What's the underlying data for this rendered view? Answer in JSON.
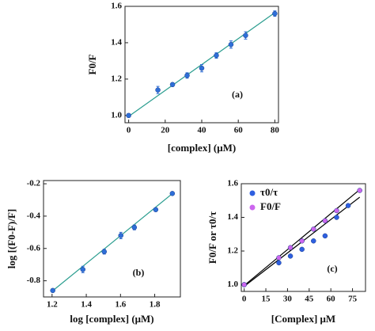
{
  "chart_data": [
    {
      "type": "scatter",
      "xlabel": "[complex] (μM)",
      "ylabel": "F0/F",
      "annotation": "(a)",
      "color": "#2e6fd8",
      "fit_color": "#2a9d8f",
      "series": [
        {
          "color": "#2e6fd8",
          "x": [
            0,
            16,
            24,
            32,
            40,
            48,
            56,
            64,
            80
          ],
          "values": [
            1.0,
            1.14,
            1.17,
            1.22,
            1.26,
            1.33,
            1.39,
            1.44,
            1.56
          ],
          "errors": [
            0.01,
            0.02,
            0.01,
            0.015,
            0.02,
            0.015,
            0.02,
            0.02,
            0.015
          ]
        }
      ],
      "fits": [
        {
          "color": "#2a9d8f",
          "x": [
            0,
            80
          ],
          "values": [
            0.995,
            1.565
          ]
        }
      ],
      "xlim": [
        -2,
        82
      ],
      "ylim": [
        0.96,
        1.6
      ],
      "xticks": [
        0,
        20,
        40,
        60,
        80
      ],
      "yticks": [
        {
          "value": 1,
          "label": "1.0"
        },
        1.2,
        1.4,
        1.6
      ]
    },
    {
      "type": "scatter",
      "xlabel": "log [complex] (μM)",
      "ylabel": "log [(F0-F)/F]",
      "annotation": "(b)",
      "series": [
        {
          "color": "#2e6fd8",
          "x": [
            1.204,
            1.38,
            1.505,
            1.602,
            1.681,
            1.806,
            1.903
          ],
          "values": [
            -0.86,
            -0.73,
            -0.62,
            -0.52,
            -0.47,
            -0.36,
            -0.26
          ],
          "errors": [
            0.01,
            0.02,
            0.015,
            0.02,
            0.015,
            0.01,
            0.005
          ]
        }
      ],
      "fits": [
        {
          "color": "#2a9d8f",
          "x": [
            1.2,
            1.91
          ],
          "values": [
            -0.865,
            -0.255
          ]
        }
      ],
      "xlim": [
        1.15,
        1.95
      ],
      "ylim": [
        -0.9,
        -0.18
      ],
      "xticks": [
        1.2,
        1.4,
        1.6,
        1.8
      ],
      "yticks": [
        -0.8,
        -0.6,
        -0.4,
        -0.2
      ]
    },
    {
      "type": "scatter",
      "xlabel": "[Complex] μM",
      "ylabel": "F0/F or τ0/τ",
      "annotation": "(c)",
      "legend": "upper left",
      "series": [
        {
          "name": "τ0/τ",
          "color": "#2e5fe0",
          "x": [
            0,
            24,
            32,
            40,
            48,
            56,
            64,
            72
          ],
          "values": [
            1.0,
            1.13,
            1.17,
            1.21,
            1.26,
            1.29,
            1.4,
            1.47
          ]
        },
        {
          "name": "F0/F",
          "color": "#cc66ee",
          "x": [
            0,
            24,
            32,
            40,
            48,
            56,
            64,
            80
          ],
          "values": [
            1.0,
            1.16,
            1.22,
            1.26,
            1.33,
            1.38,
            1.44,
            1.56
          ]
        }
      ],
      "fits": [
        {
          "color": "#000000",
          "x": [
            0,
            80
          ],
          "values": [
            0.99,
            1.52
          ]
        },
        {
          "color": "#000000",
          "x": [
            0,
            80
          ],
          "values": [
            0.995,
            1.565
          ]
        }
      ],
      "xlim": [
        -2,
        84
      ],
      "ylim": [
        0.96,
        1.6
      ],
      "xticks": [
        0,
        15,
        30,
        45,
        60,
        75
      ],
      "yticks": [
        {
          "value": 1,
          "label": "1.0"
        },
        1.2,
        1.4,
        1.6
      ]
    }
  ]
}
